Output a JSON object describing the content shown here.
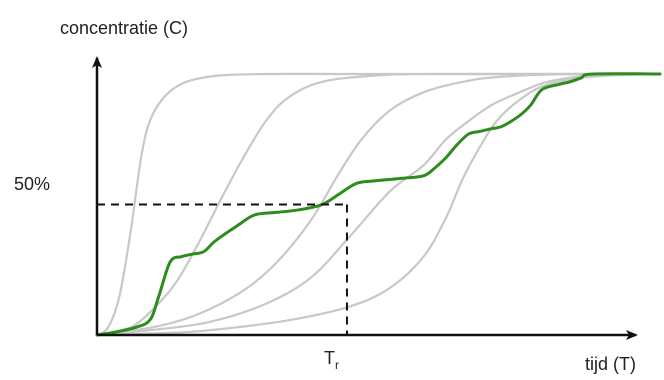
{
  "chart_data": {
    "type": "line",
    "title": "",
    "ylabel": "concentratie (C)",
    "xlabel": "tijd (T)",
    "xlim": [
      0,
      100
    ],
    "ylim": [
      0,
      100
    ],
    "grid": false,
    "legend": "none",
    "y_ticks": [
      {
        "value": 50,
        "label": "50%"
      }
    ],
    "x_ticks": [
      {
        "value": 44.4,
        "label": "T",
        "subscript": "r"
      }
    ],
    "reference_lines": [
      {
        "name": "y-50-guide",
        "from": [
          0,
          50
        ],
        "to": [
          44.4,
          50
        ]
      },
      {
        "name": "x-tr-guide",
        "from": [
          44.4,
          50
        ],
        "to": [
          44.4,
          0
        ]
      }
    ],
    "series": [
      {
        "color": "#c8c8c8",
        "x": [
          0,
          2,
          4,
          6,
          8,
          10,
          14,
          20,
          30,
          45,
          70,
          100
        ],
        "y": [
          0,
          3,
          15,
          40,
          70,
          85,
          95,
          99,
          100,
          100,
          100,
          100
        ]
      },
      {
        "color": "#c8c8c8",
        "x": [
          0,
          6,
          10,
          14,
          18,
          22,
          26,
          30,
          34,
          40,
          50,
          60,
          75,
          100
        ],
        "y": [
          0,
          3,
          10,
          20,
          35,
          52,
          68,
          82,
          91,
          97,
          99.5,
          100,
          100,
          100
        ]
      },
      {
        "color": "#c8c8c8",
        "x": [
          0,
          10,
          18,
          26,
          32,
          38,
          43,
          47,
          52,
          58,
          65,
          72,
          85,
          100
        ],
        "y": [
          0,
          3,
          8,
          17,
          28,
          44,
          62,
          75,
          86,
          93,
          97,
          99,
          100,
          100
        ]
      },
      {
        "color": "#c8c8c8",
        "x": [
          0,
          10,
          20,
          30,
          38,
          45,
          52,
          58,
          62,
          66,
          70,
          74,
          80,
          88,
          100
        ],
        "y": [
          0,
          2,
          5,
          12,
          22,
          38,
          55,
          65,
          75,
          82,
          88,
          92,
          97,
          99.5,
          100
        ]
      },
      {
        "color": "#c8c8c8",
        "x": [
          0,
          15,
          25,
          35,
          45,
          52,
          58,
          62,
          65,
          68,
          71,
          75,
          80,
          88,
          100
        ],
        "y": [
          0,
          1,
          3,
          6,
          11,
          18,
          30,
          45,
          60,
          72,
          82,
          90,
          96,
          99,
          100
        ]
      },
      {
        "color": "#2e8b1e",
        "x": [
          0,
          3,
          7,
          9.5,
          11,
          13,
          15,
          17,
          19,
          21,
          25,
          28,
          32,
          36,
          40,
          43,
          46,
          49,
          54,
          58,
          60,
          62,
          64,
          66,
          68,
          70,
          72,
          75,
          77,
          79,
          82,
          84,
          86,
          88,
          100
        ],
        "y": [
          0,
          1,
          3,
          6,
          15,
          28,
          30,
          31,
          32,
          36,
          42,
          46,
          47,
          48,
          50,
          54,
          58,
          59,
          60,
          61,
          64,
          68,
          73,
          77,
          78,
          79,
          80,
          84,
          88,
          94,
          96,
          97,
          98.5,
          100,
          100
        ]
      }
    ]
  }
}
